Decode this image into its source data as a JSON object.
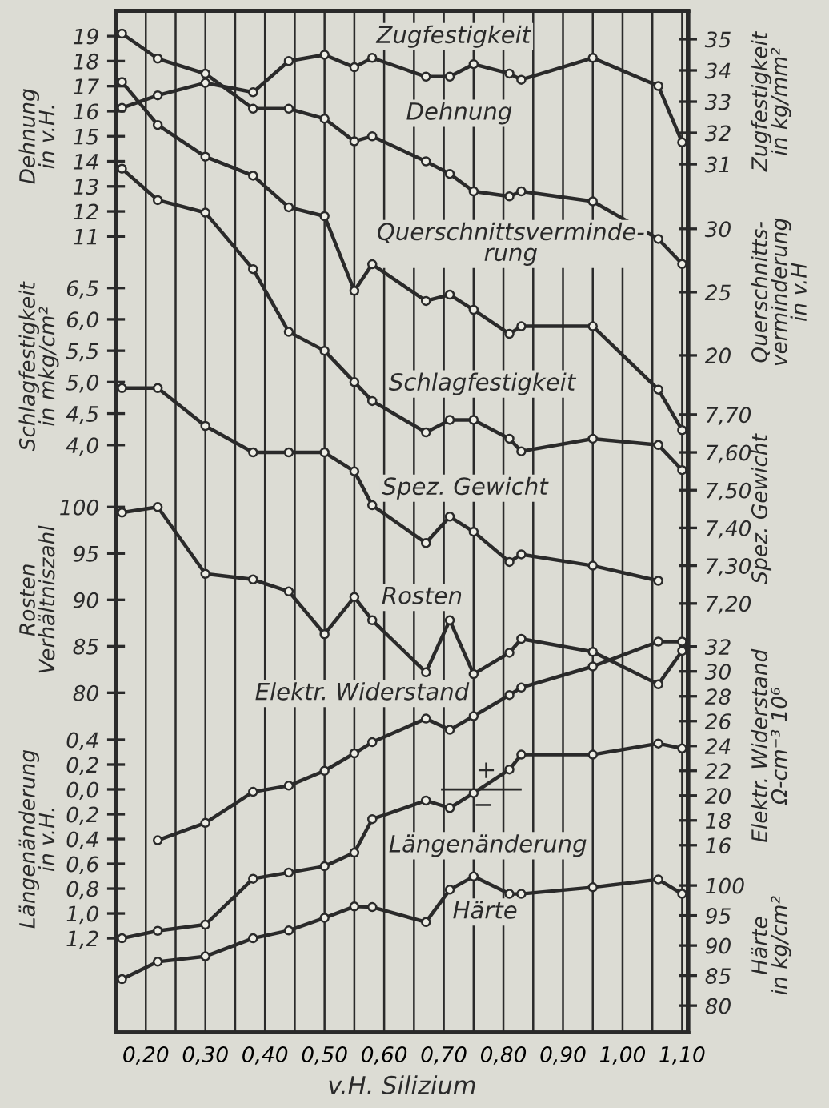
{
  "chart_data": [
    {
      "type": "line",
      "marker": "circle",
      "grid": "x",
      "tick_labels": "y",
      "xlim": [
        0.15,
        1.11
      ],
      "y2label": "Zugfestigkeit\nin kg/mm²",
      "y2lim": [
        3.2,
        35.9
      ],
      "y2ticks": [
        31,
        32,
        33,
        34,
        35
      ],
      "series": [
        {
          "name": "Zugfestigkeit",
          "axis": "y2",
          "color": "#2a2a2a",
          "x": [
            0.16,
            0.22,
            0.3,
            0.38,
            0.44,
            0.5,
            0.55,
            0.58,
            0.67,
            0.71,
            0.75,
            0.81,
            0.83,
            0.95,
            1.06,
            1.1
          ],
          "values": [
            32.8,
            33.2,
            33.6,
            33.3,
            34.3,
            34.5,
            34.1,
            34.4,
            33.8,
            33.8,
            34.2,
            33.9,
            33.7,
            34.4,
            33.5,
            31.7
          ]
        }
      ]
    },
    {
      "type": "line",
      "marker": "circle",
      "tick_labels": "y",
      "xlim": [
        0.15,
        1.11
      ],
      "ylabel": "Dehnung\nin v.H.",
      "ylim": [
        -20.8,
        20.0
      ],
      "yticks": [
        11,
        12,
        13,
        14,
        15,
        16,
        17,
        18,
        19
      ],
      "series": [
        {
          "name": "Dehnung",
          "color": "#2a2a2a",
          "x": [
            0.16,
            0.22,
            0.3,
            0.38,
            0.44,
            0.5,
            0.55,
            0.58,
            0.67,
            0.71,
            0.75,
            0.81,
            0.83,
            0.95,
            1.06,
            1.1
          ],
          "values": [
            19.1,
            18.1,
            17.5,
            16.1,
            16.1,
            15.7,
            14.8,
            15.0,
            14.0,
            13.5,
            12.8,
            12.6,
            12.8,
            12.4,
            10.9,
            9.9
          ]
        }
      ]
    },
    {
      "type": "line",
      "marker": "circle",
      "tick_labels": "y",
      "xlim": [
        0.15,
        1.11
      ],
      "y2label": "Querschnitts-\nverminderung\nin v.H",
      "y2lim": [
        -33.5,
        47.2
      ],
      "y2ticks": [
        20,
        25,
        30
      ],
      "series": [
        {
          "name": "Querschnittsverminde-\nrung",
          "axis": "y2",
          "color": "#2a2a2a",
          "x": [
            0.16,
            0.22,
            0.3,
            0.38,
            0.44,
            0.5,
            0.55,
            0.58,
            0.67,
            0.71,
            0.75,
            0.81,
            0.83,
            0.95,
            1.06,
            1.1
          ],
          "values": [
            41.6,
            38.2,
            35.7,
            34.2,
            31.7,
            31.0,
            25.1,
            27.2,
            24.3,
            24.8,
            23.6,
            21.7,
            22.3,
            22.3,
            17.3,
            14.1
          ]
        }
      ]
    },
    {
      "type": "line",
      "marker": "circle",
      "tick_labels": "y",
      "xlim": [
        0.15,
        1.11
      ],
      "ylabel": "Schlagfestigkeit\nin mkg/cm²",
      "ylim": [
        -5.36,
        10.91
      ],
      "yticks": [
        {
          "value": 4.0,
          "label": "4,0"
        },
        {
          "value": 4.5,
          "label": "4,5"
        },
        {
          "value": 5.0,
          "label": "5,0"
        },
        {
          "value": 5.5,
          "label": "5,5"
        },
        {
          "value": 6.0,
          "label": "6,0"
        },
        {
          "value": 6.5,
          "label": "6,5"
        }
      ],
      "series": [
        {
          "name": "Schlagfestigkeit",
          "color": "#2a2a2a",
          "x": [
            0.16,
            0.22,
            0.3,
            0.38,
            0.44,
            0.5,
            0.55,
            0.58,
            0.67,
            0.71,
            0.75,
            0.81,
            0.83,
            0.95,
            1.06,
            1.1
          ],
          "values": [
            8.4,
            7.9,
            7.7,
            6.8,
            5.8,
            5.5,
            5.0,
            4.7,
            4.2,
            4.4,
            4.4,
            4.1,
            3.9,
            4.1,
            4.0,
            3.6
          ]
        }
      ]
    },
    {
      "type": "line",
      "marker": "circle",
      "tick_labels": "y",
      "xlim": [
        0.15,
        1.11
      ],
      "y2label": "Spez. Gewicht",
      "y2lim": [
        6.064,
        8.768
      ],
      "y2ticks": [
        {
          "value": 7.2,
          "label": "7,20"
        },
        {
          "value": 7.3,
          "label": "7,30"
        },
        {
          "value": 7.4,
          "label": "7,40"
        },
        {
          "value": 7.5,
          "label": "7,50"
        },
        {
          "value": 7.6,
          "label": "7,60"
        },
        {
          "value": 7.7,
          "label": "7,70"
        }
      ],
      "series": [
        {
          "name": "Spez. Gewicht",
          "axis": "y2",
          "color": "#2a2a2a",
          "x": [
            0.16,
            0.22,
            0.3,
            0.38,
            0.44,
            0.5,
            0.55,
            0.58,
            0.67,
            0.71,
            0.75,
            0.81,
            0.83,
            0.95,
            1.06
          ],
          "values": [
            7.77,
            7.77,
            7.67,
            7.6,
            7.6,
            7.6,
            7.55,
            7.46,
            7.36,
            7.43,
            7.39,
            7.31,
            7.33,
            7.3,
            7.26
          ]
        }
      ]
    },
    {
      "type": "line",
      "marker": "circle",
      "tick_labels": "y",
      "xlim": [
        0.15,
        1.11
      ],
      "ylabel": "Rosten\nVerhältniszahl",
      "ylim": [
        43.4,
        153.4
      ],
      "yticks": [
        80,
        85,
        90,
        95,
        100
      ],
      "series": [
        {
          "name": "Rosten",
          "color": "#2a2a2a",
          "x": [
            0.16,
            0.22,
            0.3,
            0.38,
            0.44,
            0.5,
            0.55,
            0.58,
            0.67,
            0.71,
            0.75,
            0.81,
            0.83,
            0.95,
            1.06,
            1.1
          ],
          "values": [
            99.4,
            100.0,
            92.8,
            92.2,
            90.9,
            86.3,
            90.3,
            87.8,
            82.2,
            87.8,
            82.0,
            84.3,
            85.8,
            84.4,
            80.9,
            84.5
          ]
        }
      ]
    },
    {
      "type": "line",
      "marker": "circle",
      "tick_labels": "y",
      "xlim": [
        0.15,
        1.11
      ],
      "y2label": "Elektr. Widerstand\nΩ-cm⁻³ 10⁶",
      "y2lim": [
        0.9,
        83.2
      ],
      "y2ticks": [
        16,
        18,
        20,
        22,
        24,
        26,
        28,
        30,
        32
      ],
      "series": [
        {
          "name": "Elektr. Widerstand",
          "axis": "y2",
          "color": "#2a2a2a",
          "x": [
            0.22,
            0.3,
            0.38,
            0.44,
            0.5,
            0.55,
            0.58,
            0.67,
            0.71,
            0.75,
            0.81,
            0.83,
            0.95,
            1.06,
            1.1
          ],
          "values": [
            16.4,
            17.8,
            20.3,
            20.8,
            22.0,
            23.4,
            24.3,
            26.2,
            25.3,
            26.4,
            28.1,
            28.7,
            30.4,
            32.4,
            32.4
          ]
        }
      ]
    },
    {
      "type": "line",
      "marker": "circle",
      "tick_labels": "y",
      "xlim": [
        0.15,
        1.11
      ],
      "ylabel": "Längenänderung\nin v.H.",
      "ylim": [
        -1.96,
        6.27
      ],
      "yticks": [
        {
          "value": 0.4,
          "label": "0,4"
        },
        {
          "value": 0.2,
          "label": "0,2"
        },
        {
          "value": 0.0,
          "label": "0,0"
        },
        {
          "value": -0.2,
          "label": "0,2"
        },
        {
          "value": -0.4,
          "label": "0,4"
        },
        {
          "value": -0.6,
          "label": "0,6"
        },
        {
          "value": -0.8,
          "label": "0,8"
        },
        {
          "value": -1.0,
          "label": "1,0"
        },
        {
          "value": -1.2,
          "label": "1,2"
        }
      ],
      "annotations": [
        "+",
        "−"
      ],
      "series": [
        {
          "name": "Längenänderung",
          "color": "#2a2a2a",
          "x": [
            0.16,
            0.22,
            0.3,
            0.38,
            0.44,
            0.5,
            0.55,
            0.58,
            0.67,
            0.71,
            0.75,
            0.81,
            0.83,
            0.95,
            1.06,
            1.1
          ],
          "values": [
            -1.2,
            -1.14,
            -1.09,
            -0.72,
            -0.67,
            -0.62,
            -0.51,
            -0.24,
            -0.09,
            -0.15,
            -0.03,
            0.16,
            0.28,
            0.28,
            0.37,
            0.33
          ]
        }
      ]
    },
    {
      "type": "line",
      "marker": "circle",
      "xlim": [
        0.15,
        1.11
      ],
      "xticks": [
        {
          "value": 0.2,
          "label": "0,20"
        },
        {
          "value": 0.25,
          "label": null
        },
        {
          "value": 0.3,
          "label": "0,30"
        },
        {
          "value": 0.35,
          "label": null
        },
        {
          "value": 0.4,
          "label": "0,40"
        },
        {
          "value": 0.45,
          "label": null
        },
        {
          "value": 0.5,
          "label": "0,50"
        },
        {
          "value": 0.55,
          "label": null
        },
        {
          "value": 0.6,
          "label": "0,60"
        },
        {
          "value": 0.65,
          "label": null
        },
        {
          "value": 0.7,
          "label": "0,70"
        },
        {
          "value": 0.75,
          "label": null
        },
        {
          "value": 0.8,
          "label": "0,80"
        },
        {
          "value": 0.85,
          "label": null
        },
        {
          "value": 0.9,
          "label": "0,90"
        },
        {
          "value": 0.95,
          "label": null
        },
        {
          "value": 1.0,
          "label": "1,00"
        },
        {
          "value": 1.05,
          "label": null
        },
        {
          "value": 1.1,
          "label": "1,10"
        }
      ],
      "xlabel": "v.H. Silizium",
      "y2label": "Härte\nin kg/cm²",
      "y2lim": [
        75.5,
        245.6
      ],
      "y2ticks": [
        80,
        85,
        90,
        95,
        100
      ],
      "series": [
        {
          "name": "Härte",
          "axis": "y2",
          "color": "#2a2a2a",
          "x": [
            0.16,
            0.22,
            0.3,
            0.38,
            0.44,
            0.5,
            0.55,
            0.58,
            0.67,
            0.71,
            0.75,
            0.81,
            0.83,
            0.95,
            1.06,
            1.1
          ],
          "values": [
            84.4,
            87.3,
            88.2,
            91.2,
            92.5,
            94.6,
            96.5,
            96.4,
            93.9,
            99.3,
            101.5,
            98.6,
            98.6,
            99.7,
            101.0,
            98.6
          ]
        }
      ]
    }
  ]
}
